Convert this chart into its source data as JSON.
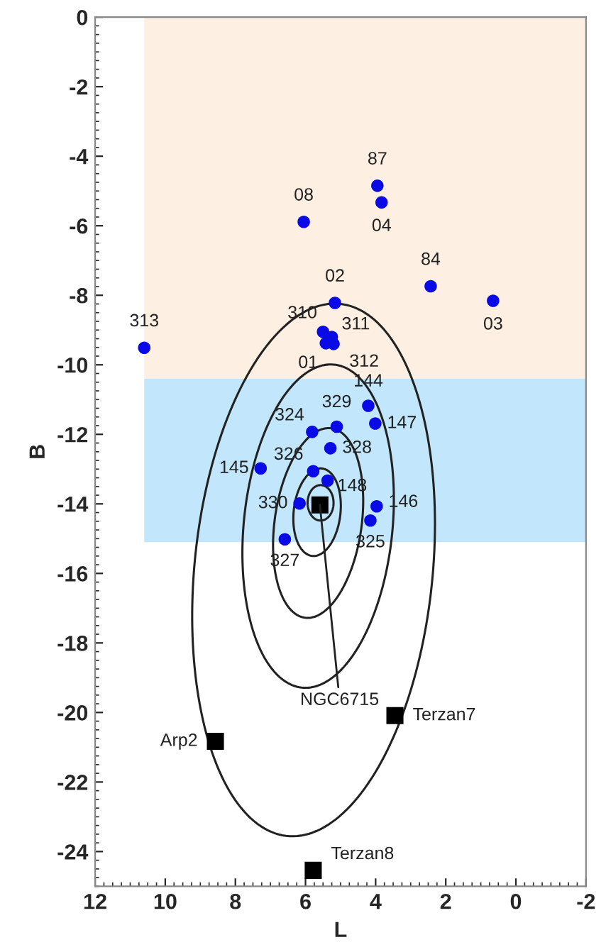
{
  "chart_data": {
    "type": "scatter",
    "xlabel": "L",
    "ylabel": "B",
    "xlim": [
      12,
      -2
    ],
    "xticks": [
      12,
      10,
      8,
      6,
      4,
      2,
      0,
      -2
    ],
    "ylim": [
      -25,
      0
    ],
    "yticks": [
      0,
      -2,
      -4,
      -6,
      -8,
      -10,
      -12,
      -14,
      -16,
      -18,
      -20,
      -22,
      -24
    ],
    "grid": false,
    "bands": [
      {
        "axis": "y",
        "from": 0,
        "to": -10.4,
        "color": "#fdf0e2"
      },
      {
        "axis": "y",
        "from": -10.4,
        "to": -15.1,
        "color": "#c2e6fb"
      },
      {
        "axis": "x",
        "from": 12,
        "to": 10.6,
        "color": "#ffffff"
      }
    ],
    "series": [
      {
        "color": "#0a0ae6",
        "marker": "circle",
        "x": [
          3.95,
          3.83,
          6.05,
          2.43,
          0.65,
          5.16,
          10.6,
          5.5,
          5.25,
          5.2,
          5.42,
          4.21,
          4.01,
          5.11,
          5.81,
          5.29,
          7.28,
          5.78,
          5.37,
          6.17,
          3.97,
          4.15,
          6.59
        ],
        "values": [
          -4.85,
          -5.33,
          -5.89,
          -7.74,
          -8.16,
          -8.22,
          -9.51,
          -9.05,
          -9.2,
          -9.4,
          -9.38,
          -11.18,
          -11.69,
          -11.78,
          -11.93,
          -12.4,
          -12.98,
          -13.06,
          -13.33,
          -13.99,
          -14.07,
          -14.48,
          -15.02
        ]
      },
      {
        "color": "#000000",
        "marker": "square",
        "x": [
          5.59,
          8.57,
          3.45,
          5.78
        ],
        "values": [
          -14.03,
          -20.83,
          -20.09,
          -24.54
        ]
      }
    ],
    "annotations": [
      {
        "text": "87",
        "x": 3.95,
        "y": -4.85
      },
      {
        "text": "04",
        "x": 3.83,
        "y": -5.33
      },
      {
        "text": "08",
        "x": 6.05,
        "y": -5.89
      },
      {
        "text": "84",
        "x": 2.43,
        "y": -7.74
      },
      {
        "text": "03",
        "x": 0.65,
        "y": -8.16
      },
      {
        "text": "02",
        "x": 5.16,
        "y": -8.22
      },
      {
        "text": "313",
        "x": 10.6,
        "y": -9.51
      },
      {
        "text": "310",
        "x": 5.5,
        "y": -9.05
      },
      {
        "text": "311",
        "x": 5.25,
        "y": -9.2
      },
      {
        "text": "312",
        "x": 5.2,
        "y": -9.4
      },
      {
        "text": "01",
        "x": 5.42,
        "y": -9.38
      },
      {
        "text": "144",
        "x": 4.21,
        "y": -11.18
      },
      {
        "text": "147",
        "x": 4.01,
        "y": -11.69
      },
      {
        "text": "329",
        "x": 5.11,
        "y": -11.78
      },
      {
        "text": "324",
        "x": 5.81,
        "y": -11.93
      },
      {
        "text": "328",
        "x": 5.29,
        "y": -12.4
      },
      {
        "text": "145",
        "x": 7.28,
        "y": -12.98
      },
      {
        "text": "326",
        "x": 5.78,
        "y": -13.06
      },
      {
        "text": "148",
        "x": 5.37,
        "y": -13.33
      },
      {
        "text": "330",
        "x": 6.17,
        "y": -13.99
      },
      {
        "text": "146",
        "x": 3.97,
        "y": -14.07
      },
      {
        "text": "325",
        "x": 4.15,
        "y": -14.48
      },
      {
        "text": "327",
        "x": 6.59,
        "y": -15.02
      },
      {
        "text": "NGC6715",
        "x": 5.59,
        "y": -14.03
      },
      {
        "text": "Arp2",
        "x": 8.57,
        "y": -20.83
      },
      {
        "text": "Terzan7",
        "x": 3.45,
        "y": -20.09
      },
      {
        "text": "Terzan8",
        "x": 5.78,
        "y": -24.54
      }
    ]
  }
}
